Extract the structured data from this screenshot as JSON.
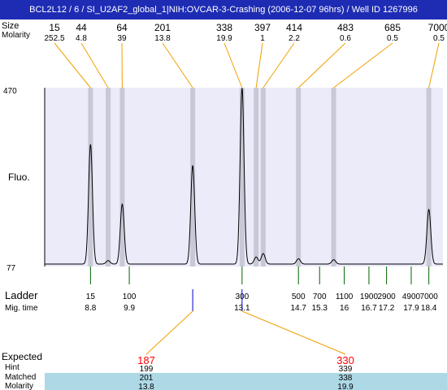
{
  "window": {
    "title": "BCL2L12 / 6 / SI_U2AF2_global_1|NIH:OVCAR-3-Crashing (2006-12-07 96hrs) / Well ID 1267996"
  },
  "colors": {
    "title_bar": "#1e2cb4",
    "plot_background": "#ebebf9",
    "band": "#c8c8d6",
    "trace": "#000000",
    "peak_connector": "#f0a000",
    "ladder_tick": "#006400",
    "expected_marker": "#0000cc",
    "expected_value": "#ff0000",
    "table_row": "#add8e6"
  },
  "chart_data": {
    "type": "line",
    "title": "",
    "ylabel": "Fluo.",
    "xlabel": "",
    "y_axis": {
      "top_label": "470",
      "bottom_label": "77"
    },
    "x_range_time": [
      7.5,
      18.8
    ],
    "y_range": [
      77,
      470
    ],
    "grid": false,
    "header_labels": {
      "size_label": "Size",
      "molarity_label": "Molarity"
    },
    "peaks": [
      {
        "size": "15",
        "molarity": "252.5",
        "time": 8.8,
        "height": 0.68
      },
      {
        "size": "44",
        "molarity": "4.8",
        "time": 9.3,
        "height": 0.02
      },
      {
        "size": "64",
        "molarity": "39",
        "time": 9.7,
        "height": 0.34
      },
      {
        "size": "201",
        "molarity": "13.8",
        "time": 11.7,
        "height": 0.56
      },
      {
        "size": "338",
        "molarity": "19.9",
        "time": 13.1,
        "height": 1.0
      },
      {
        "size": "397",
        "molarity": "1",
        "time": 13.5,
        "height": 0.04
      },
      {
        "size": "414",
        "molarity": "2.2",
        "time": 13.7,
        "height": 0.06
      },
      {
        "size": "483",
        "molarity": "0.6",
        "time": 14.7,
        "height": 0.03
      },
      {
        "size": "685",
        "molarity": "0.5",
        "time": 15.7,
        "height": 0.025
      },
      {
        "size": "7000",
        "molarity": "0.5",
        "time": 18.4,
        "height": 0.31
      }
    ],
    "ladder": {
      "label": "Ladder",
      "time_label": "Mig. time",
      "points": [
        {
          "size": "15",
          "time": "8.8",
          "t": 8.8
        },
        {
          "size": "100",
          "time": "9.9",
          "t": 9.9
        },
        {
          "size": "300",
          "time": "13.1",
          "t": 13.1
        },
        {
          "size": "500",
          "time": "14.7",
          "t": 14.7
        },
        {
          "size": "700",
          "time": "15.3",
          "t": 15.3
        },
        {
          "size": "1100",
          "time": "16",
          "t": 16.0
        },
        {
          "size": "1900",
          "time": "16.7",
          "t": 16.7
        },
        {
          "size": "2900",
          "time": "17.2",
          "t": 17.2
        },
        {
          "size": "4900",
          "time": "17.9",
          "t": 17.9
        },
        {
          "size": "7000",
          "time": "18.4",
          "t": 18.4
        }
      ]
    },
    "expected_markers": [
      {
        "t": 11.7
      },
      {
        "t": 13.1
      }
    ],
    "table": {
      "row_labels": {
        "expected": "Expected",
        "hint": "Hint",
        "matched": "Matched",
        "molarity": "Molarity"
      },
      "columns": [
        {
          "expected": "187",
          "hint": "199",
          "matched": "201",
          "molarity": "13.8"
        },
        {
          "expected": "330",
          "hint": "339",
          "matched": "338",
          "molarity": "19.9"
        }
      ]
    }
  }
}
